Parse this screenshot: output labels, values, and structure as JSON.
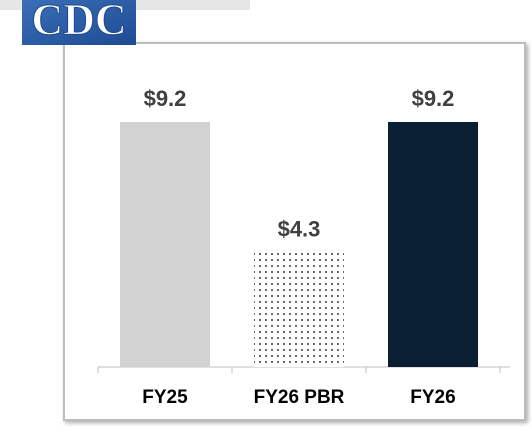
{
  "logo": "CDC",
  "chart_data": {
    "type": "bar",
    "categories": [
      "FY25",
      "FY26 PBR",
      "FY26"
    ],
    "values": [
      9.2,
      4.3,
      9.2
    ],
    "value_labels": [
      "$9.2",
      "$4.3",
      "$9.2"
    ],
    "colors": [
      "#d2d2d2",
      "#000000",
      "#0b1f33"
    ],
    "patterns": [
      null,
      "dots",
      null
    ]
  }
}
